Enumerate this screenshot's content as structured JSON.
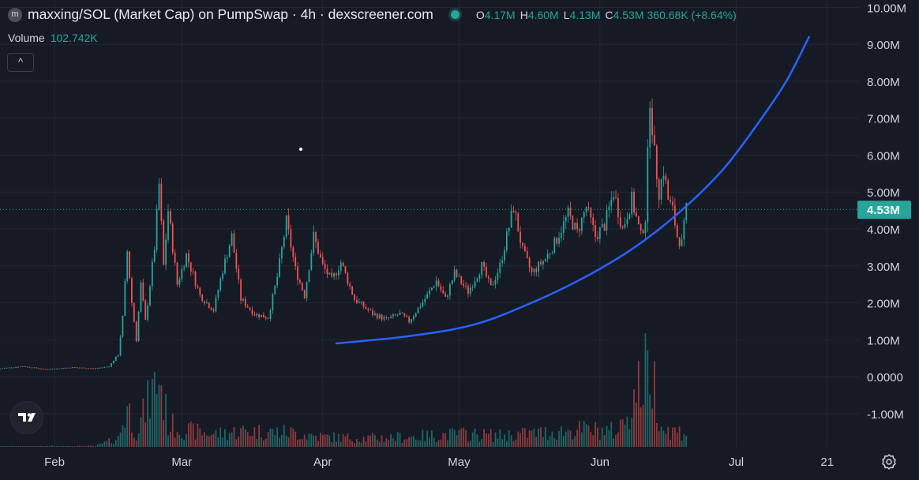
{
  "legend": {
    "symbol_badge": "m",
    "title": "maxxing/SOL (Market Cap) on PumpSwap · 4h · dexscreener.com",
    "open_key": "O",
    "open": "4.17M",
    "high_key": "H",
    "high": "4.60M",
    "low_key": "L",
    "low": "4.13M",
    "close_key": "C",
    "close": "4.53M",
    "change": "360.68K (+8.64%)"
  },
  "volume_legend": {
    "label": "Volume",
    "value": "102.742K"
  },
  "collapse_button": {
    "label": "^"
  },
  "icons": {
    "logo": "tradingview-logo-icon",
    "settings": "gear-icon",
    "status": "live-status-dot"
  },
  "colors": {
    "background": "#161a25",
    "up": "#26a69a",
    "down": "#ef5350",
    "trendline": "#2962ff",
    "price_tag": "#26a69a",
    "axis_text": "#d1d4dc"
  },
  "chart_data": {
    "type": "candlestick",
    "interval": "4h",
    "y_unit": "USD market cap",
    "ylim": [
      -1.9,
      10.2
    ],
    "y_ticks": [
      {
        "v": 10,
        "label": "10.00M"
      },
      {
        "v": 9,
        "label": "9.00M"
      },
      {
        "v": 8,
        "label": "8.00M"
      },
      {
        "v": 7,
        "label": "7.00M"
      },
      {
        "v": 6,
        "label": "6.00M"
      },
      {
        "v": 5,
        "label": "5.00M"
      },
      {
        "v": 4,
        "label": "4.00M"
      },
      {
        "v": 3,
        "label": "3.00M"
      },
      {
        "v": 2,
        "label": "2.00M"
      },
      {
        "v": 1,
        "label": "1.00M"
      },
      {
        "v": 0,
        "label": "0.0000"
      },
      {
        "v": -1,
        "label": "-1.00M"
      }
    ],
    "x_ticks": [
      {
        "date": "2025-02-01",
        "label": "Feb"
      },
      {
        "date": "2025-03-01",
        "label": "Mar"
      },
      {
        "date": "2025-04-01",
        "label": "Apr"
      },
      {
        "date": "2025-05-01",
        "label": "May"
      },
      {
        "date": "2025-06-01",
        "label": "Jun"
      },
      {
        "date": "2025-07-01",
        "label": "Jul"
      },
      {
        "date": "2025-07-21",
        "label": "21"
      }
    ],
    "xlim": [
      "2025-01-20",
      "2025-07-28"
    ],
    "last_price": {
      "value": 4.53,
      "label": "4.53M"
    },
    "grid": true,
    "series": [
      {
        "kind": "price",
        "points": [
          [
            "2025-01-20",
            0.22
          ],
          [
            "2025-01-25",
            0.28
          ],
          [
            "2025-01-30",
            0.2
          ],
          [
            "2025-02-05",
            0.25
          ],
          [
            "2025-02-10",
            0.22
          ],
          [
            "2025-02-13",
            0.28
          ],
          [
            "2025-02-15",
            0.6
          ],
          [
            "2025-02-16",
            1.6
          ],
          [
            "2025-02-17",
            3.4
          ],
          [
            "2025-02-18",
            2.0
          ],
          [
            "2025-02-19",
            1.0
          ],
          [
            "2025-02-20",
            2.5
          ],
          [
            "2025-02-21",
            1.5
          ],
          [
            "2025-02-23",
            3.5
          ],
          [
            "2025-02-24",
            5.2
          ],
          [
            "2025-02-25",
            3.0
          ],
          [
            "2025-02-26",
            4.5
          ],
          [
            "2025-02-28",
            2.5
          ],
          [
            "2025-03-02",
            3.3
          ],
          [
            "2025-03-05",
            2.2
          ],
          [
            "2025-03-08",
            1.8
          ],
          [
            "2025-03-10",
            2.9
          ],
          [
            "2025-03-12",
            3.8
          ],
          [
            "2025-03-14",
            2.1
          ],
          [
            "2025-03-17",
            1.7
          ],
          [
            "2025-03-20",
            1.6
          ],
          [
            "2025-03-22",
            2.7
          ],
          [
            "2025-03-24",
            4.2
          ],
          [
            "2025-03-26",
            2.9
          ],
          [
            "2025-03-28",
            2.2
          ],
          [
            "2025-03-30",
            3.8
          ],
          [
            "2025-04-01",
            3.0
          ],
          [
            "2025-04-03",
            2.6
          ],
          [
            "2025-04-05",
            3.1
          ],
          [
            "2025-04-08",
            2.1
          ],
          [
            "2025-04-12",
            1.7
          ],
          [
            "2025-04-15",
            1.55
          ],
          [
            "2025-04-18",
            1.7
          ],
          [
            "2025-04-20",
            1.5
          ],
          [
            "2025-04-24",
            2.2
          ],
          [
            "2025-04-26",
            2.6
          ],
          [
            "2025-04-28",
            2.1
          ],
          [
            "2025-04-30",
            2.8
          ],
          [
            "2025-05-03",
            2.3
          ],
          [
            "2025-05-06",
            3.0
          ],
          [
            "2025-05-08",
            2.4
          ],
          [
            "2025-05-10",
            3.0
          ],
          [
            "2025-05-13",
            4.6
          ],
          [
            "2025-05-15",
            3.4
          ],
          [
            "2025-05-17",
            2.8
          ],
          [
            "2025-05-20",
            3.2
          ],
          [
            "2025-05-22",
            3.6
          ],
          [
            "2025-05-25",
            4.4
          ],
          [
            "2025-05-27",
            3.9
          ],
          [
            "2025-05-29",
            4.6
          ],
          [
            "2025-05-31",
            3.8
          ],
          [
            "2025-06-02",
            4.1
          ],
          [
            "2025-06-04",
            5.0
          ],
          [
            "2025-06-06",
            4.0
          ],
          [
            "2025-06-08",
            4.8
          ],
          [
            "2025-06-10",
            3.8
          ],
          [
            "2025-06-11",
            4.3
          ],
          [
            "2025-06-12",
            7.6
          ],
          [
            "2025-06-13",
            6.0
          ],
          [
            "2025-06-14",
            5.0
          ],
          [
            "2025-06-15",
            5.6
          ],
          [
            "2025-06-16",
            4.8
          ],
          [
            "2025-06-17",
            4.5
          ],
          [
            "2025-06-18",
            3.8
          ],
          [
            "2025-06-19",
            3.6
          ],
          [
            "2025-06-20",
            4.53
          ]
        ]
      },
      {
        "kind": "trendline",
        "points": [
          [
            "2025-04-04",
            0.9
          ],
          [
            "2025-04-20",
            1.1
          ],
          [
            "2025-05-04",
            1.4
          ],
          [
            "2025-05-16",
            1.95
          ],
          [
            "2025-05-28",
            2.65
          ],
          [
            "2025-06-08",
            3.45
          ],
          [
            "2025-06-18",
            4.4
          ],
          [
            "2025-06-28",
            5.6
          ],
          [
            "2025-07-06",
            6.9
          ],
          [
            "2025-07-12",
            8.0
          ],
          [
            "2025-07-17",
            9.2
          ]
        ]
      },
      {
        "kind": "volume",
        "points": [
          [
            "2025-01-20",
            0.02
          ],
          [
            "2025-02-10",
            0.03
          ],
          [
            "2025-02-15",
            0.3
          ],
          [
            "2025-02-17",
            1.4
          ],
          [
            "2025-02-19",
            0.5
          ],
          [
            "2025-02-24",
            2.5
          ],
          [
            "2025-02-26",
            0.8
          ],
          [
            "2025-03-01",
            0.6
          ],
          [
            "2025-03-08",
            0.45
          ],
          [
            "2025-03-15",
            0.55
          ],
          [
            "2025-03-25",
            0.5
          ],
          [
            "2025-04-01",
            0.35
          ],
          [
            "2025-04-10",
            0.3
          ],
          [
            "2025-04-20",
            0.35
          ],
          [
            "2025-05-01",
            0.45
          ],
          [
            "2025-05-10",
            0.4
          ],
          [
            "2025-05-20",
            0.5
          ],
          [
            "2025-05-28",
            0.6
          ],
          [
            "2025-06-05",
            0.55
          ],
          [
            "2025-06-12",
            2.9
          ],
          [
            "2025-06-15",
            0.6
          ],
          [
            "2025-06-20",
            0.5
          ]
        ]
      }
    ]
  }
}
